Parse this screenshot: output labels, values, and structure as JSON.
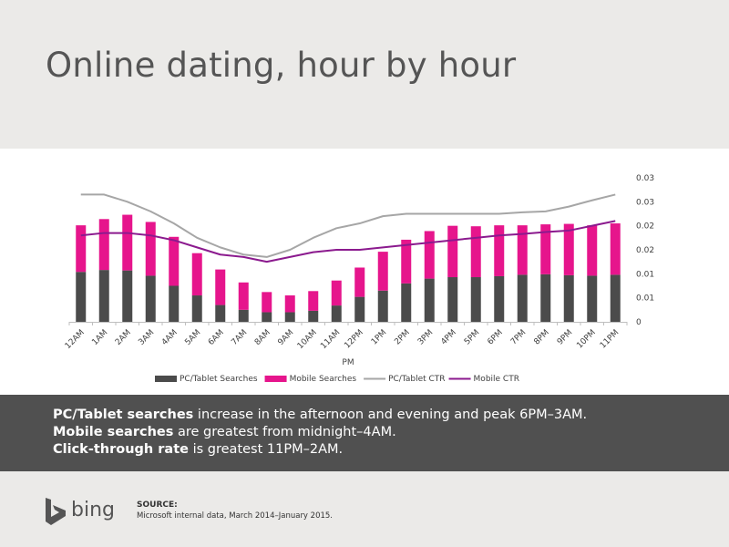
{
  "header": {
    "title": "Online dating, hour by hour"
  },
  "summary": {
    "line1_bold": "PC/Tablet searches",
    "line1_rest": " increase in the afternoon and evening and peak 6PM–3AM.",
    "line2_bold": "Mobile searches",
    "line2_rest": " are greatest from midnight–4AM.",
    "line3_bold": "Click-through rate",
    "line3_rest": " is greatest 11PM–2AM."
  },
  "footer": {
    "logo_text": "bing",
    "source_label": "SOURCE:",
    "source_text": "Microsoft internal data, March 2014–January 2015."
  },
  "colors": {
    "pc_bar": "#4b4b4b",
    "mobile_bar": "#e6158c",
    "pc_ctr": "#a6a6a6",
    "mobile_ctr": "#8b1a8e",
    "header_bg": "#ebeae8",
    "band_bg": "#505050"
  },
  "chart_data": {
    "type": "bar",
    "stacked": true,
    "categories": [
      "12AM",
      "1AM",
      "2AM",
      "3AM",
      "4AM",
      "5AM",
      "6AM",
      "7AM",
      "8AM",
      "9AM",
      "10AM",
      "11AM",
      "12PM",
      "1PM",
      "2PM",
      "3PM",
      "4PM",
      "5PM",
      "6PM",
      "7PM",
      "8PM",
      "9PM",
      "10PM",
      "11PM"
    ],
    "xlabel": "PM",
    "ylim": [
      0,
      0.03
    ],
    "y_tick_labels": [
      "0",
      "0.01",
      "0.01",
      "0.02",
      "0.02",
      "0.03",
      "0.03"
    ],
    "y_axis_position": "right",
    "grid": false,
    "legend_position": "bottom",
    "series": [
      {
        "name": "PC/Tablet Searches",
        "kind": "bar",
        "values": [
          0.0104,
          0.0108,
          0.0107,
          0.0096,
          0.0075,
          0.0055,
          0.0035,
          0.0025,
          0.002,
          0.002,
          0.0023,
          0.0034,
          0.0052,
          0.0065,
          0.008,
          0.009,
          0.0093,
          0.0093,
          0.0095,
          0.0098,
          0.0099,
          0.0097,
          0.0096,
          0.0098
        ]
      },
      {
        "name": "Mobile Searches",
        "kind": "bar",
        "values": [
          0.0097,
          0.0106,
          0.0116,
          0.0112,
          0.0102,
          0.0088,
          0.0074,
          0.0057,
          0.0042,
          0.0035,
          0.0041,
          0.0052,
          0.0061,
          0.0081,
          0.0091,
          0.0099,
          0.0107,
          0.0106,
          0.0106,
          0.0103,
          0.0104,
          0.0107,
          0.0105,
          0.0107
        ]
      },
      {
        "name": "PC/Tablet CTR",
        "kind": "line",
        "values": [
          0.0265,
          0.0265,
          0.025,
          0.023,
          0.0205,
          0.0175,
          0.0155,
          0.014,
          0.0135,
          0.015,
          0.0175,
          0.0195,
          0.0205,
          0.022,
          0.0225,
          0.0225,
          0.0225,
          0.0225,
          0.0225,
          0.0228,
          0.023,
          0.024,
          0.0253,
          0.0265
        ]
      },
      {
        "name": "Mobile CTR",
        "kind": "line",
        "values": [
          0.018,
          0.0185,
          0.0185,
          0.018,
          0.017,
          0.0155,
          0.014,
          0.0135,
          0.0125,
          0.0135,
          0.0145,
          0.015,
          0.015,
          0.0155,
          0.016,
          0.0165,
          0.017,
          0.0175,
          0.018,
          0.0183,
          0.0187,
          0.019,
          0.02,
          0.021
        ]
      }
    ]
  }
}
